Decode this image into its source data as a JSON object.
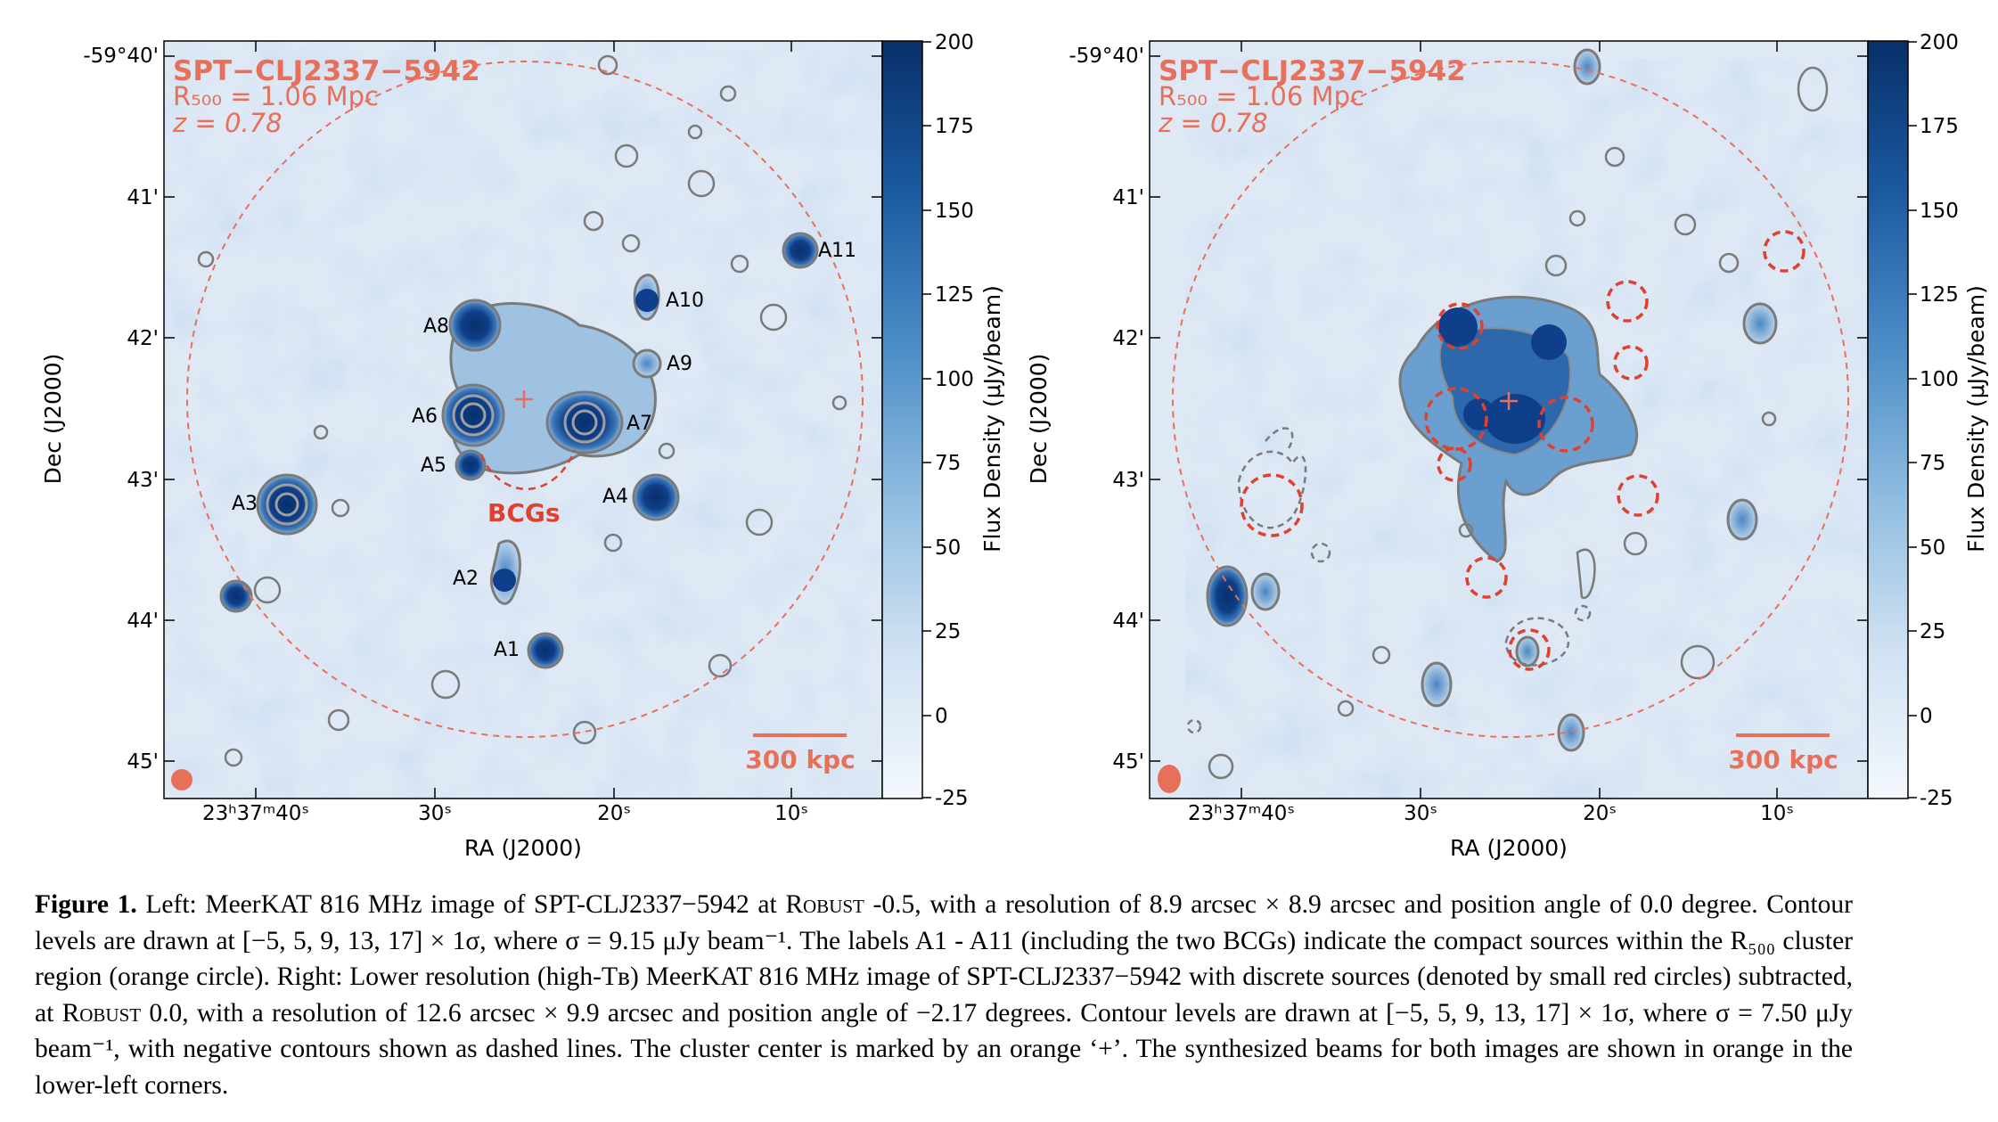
{
  "figure": {
    "cluster_name": "SPT−CLJ2337−5942",
    "r500": "R₅₀₀ = 1.06 Mpc",
    "redshift": "z = 0.78",
    "scale_bar": "300 kpc",
    "xlabel": "RA (J2000)",
    "ylabel": "Dec (J2000)",
    "colorbar_label": "Flux Density (μJy/beam)",
    "dec_ticks": [
      "-59°40'",
      "41'",
      "42'",
      "43'",
      "44'",
      "45'"
    ],
    "ra_ticks": [
      "23ʰ37ᵐ40ˢ",
      "30ˢ",
      "20ˢ",
      "10ˢ"
    ],
    "colorbar_ticks": [
      "200",
      "175",
      "150",
      "125",
      "100",
      "75",
      "50",
      "25",
      "0",
      "-25"
    ],
    "colors": {
      "annotation": "#e8705a",
      "bcg_label": "#e0402e",
      "contour": "#808080",
      "dark_blue": "#0d2b6e"
    }
  },
  "left_panel": {
    "source_labels": [
      "A1",
      "A2",
      "A3",
      "A4",
      "A5",
      "A6",
      "A7",
      "A8",
      "A9",
      "A10",
      "A11"
    ],
    "bcg_label": "BCGs"
  },
  "caption": {
    "label": "Figure 1.",
    "text_1": " Left: MeerKAT 816 MHz image of SPT-CLJ2337−5942 at ",
    "robust_1": "Robust",
    "text_2": " -0.5, with a resolution of 8.9 arcsec × 8.9 arcsec and position angle of 0.0 degree. Contour levels are drawn at [−5, 5, 9, 13, 17] × 1σ, where σ = 9.15 μJy beam⁻¹. The labels A1 - A11 (including the two BCGs) indicate the compact sources within the R₅₀₀ cluster region (orange circle). Right: Lower resolution (high-Tʙ) MeerKAT 816 MHz image of SPT-CLJ2337−5942 with discrete sources (denoted by small red circles) subtracted, at ",
    "robust_2": "Robust",
    "text_3": " 0.0, with a resolution of 12.6 arcsec × 9.9 arcsec and position angle of −2.17 degrees. Contour levels are drawn at [−5, 5, 9, 13, 17] × 1σ, where σ = 7.50 μJy beam⁻¹, with negative contours shown as dashed lines. The cluster center is marked by an orange ‘+’. The synthesized beams for both images are shown in orange in the lower-left corners."
  }
}
